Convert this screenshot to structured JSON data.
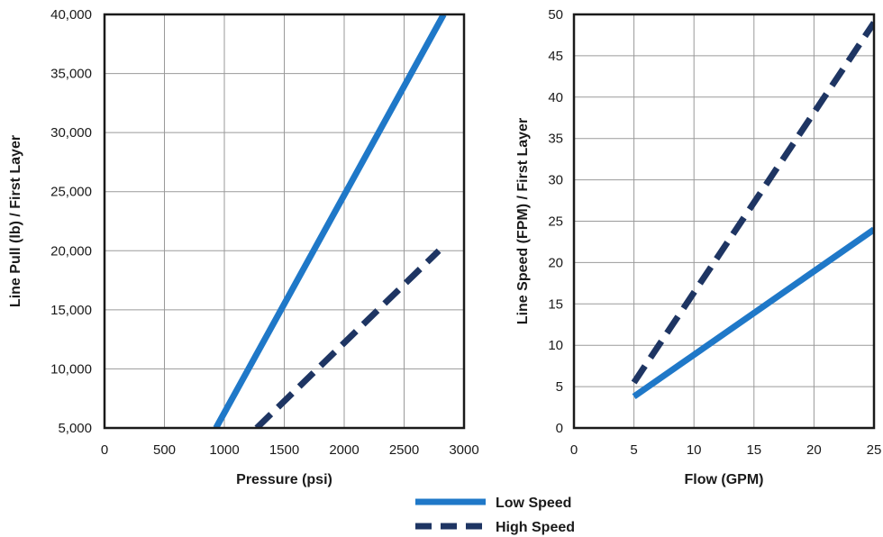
{
  "colors": {
    "low_speed": "#1f78c8",
    "high_speed": "#1e3563",
    "grid": "#9a9a9a",
    "frame": "#1a1a1a"
  },
  "legend": {
    "placement": "bottom-center",
    "entries": [
      {
        "label": "Low Speed",
        "style": "solid",
        "color_key": "low_speed"
      },
      {
        "label": "High Speed",
        "style": "dashed",
        "color_key": "high_speed"
      }
    ]
  },
  "chart_data": [
    {
      "type": "line",
      "xlabel": "Pressure (psi)",
      "ylabel": "Line Pull (lb) / First Layer",
      "xlim": [
        0,
        3000
      ],
      "ylim": [
        5000,
        40000
      ],
      "x_ticks": [
        0,
        500,
        1000,
        1500,
        2000,
        2500,
        3000
      ],
      "x_tick_labels": [
        "0",
        "500",
        "1000",
        "1500",
        "2000",
        "2500",
        "3000"
      ],
      "y_ticks": [
        5000,
        10000,
        15000,
        20000,
        25000,
        30000,
        35000,
        40000
      ],
      "y_tick_labels": [
        "5,000",
        "10,000",
        "15,000",
        "20,000",
        "25,000",
        "30,000",
        "35,000",
        "40,000"
      ],
      "grid": true,
      "series": [
        {
          "name": "Low Speed",
          "style": "solid",
          "x": [
            930,
            2830
          ],
          "y": [
            5000,
            40000
          ]
        },
        {
          "name": "High Speed",
          "style": "dashed",
          "x": [
            1270,
            2790
          ],
          "y": [
            5000,
            20000
          ]
        }
      ]
    },
    {
      "type": "line",
      "xlabel": "Flow (GPM)",
      "ylabel": "Line Speed (FPM) / First Layer",
      "xlim": [
        0,
        25
      ],
      "ylim": [
        0,
        50
      ],
      "x_ticks": [
        0,
        5,
        10,
        15,
        20,
        25
      ],
      "x_tick_labels": [
        "0",
        "5",
        "10",
        "15",
        "20",
        "25"
      ],
      "y_ticks": [
        0,
        5,
        10,
        15,
        20,
        25,
        30,
        35,
        40,
        45,
        50
      ],
      "y_tick_labels": [
        "0",
        "5",
        "10",
        "15",
        "20",
        "25",
        "30",
        "35",
        "40",
        "45",
        "50"
      ],
      "grid": true,
      "series": [
        {
          "name": "Low Speed",
          "style": "solid",
          "x": [
            5,
            25
          ],
          "y": [
            3.8,
            24
          ]
        },
        {
          "name": "High Speed",
          "style": "dashed",
          "x": [
            5,
            25
          ],
          "y": [
            5.5,
            49
          ]
        }
      ]
    }
  ]
}
